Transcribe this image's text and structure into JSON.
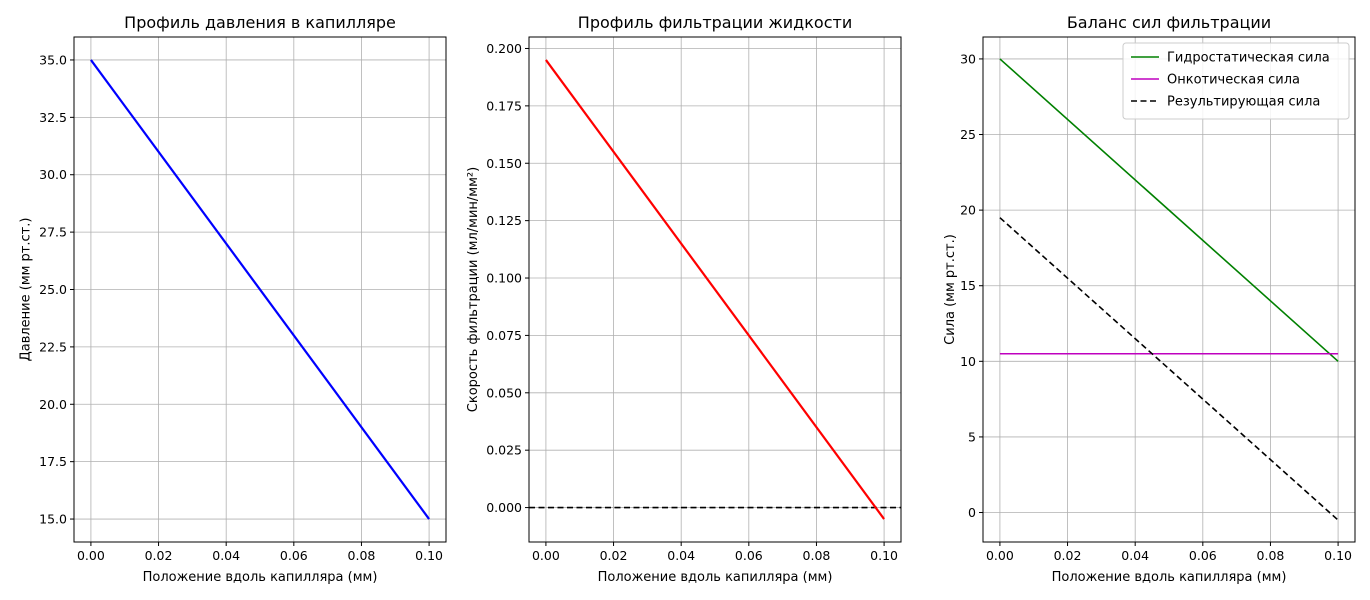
{
  "chart_data": [
    {
      "type": "line",
      "title": "Профиль давления в капилляре",
      "xlabel": "Положение вдоль капилляра (мм)",
      "ylabel": "Давление (мм рт.ст.)",
      "xlim": [
        -0.005,
        0.105
      ],
      "ylim": [
        14.0,
        36.0
      ],
      "xticks": [
        0.0,
        0.02,
        0.04,
        0.06,
        0.08,
        0.1
      ],
      "xtick_labels": [
        "0.00",
        "0.02",
        "0.04",
        "0.06",
        "0.08",
        "0.10"
      ],
      "yticks": [
        15.0,
        17.5,
        20.0,
        22.5,
        25.0,
        27.5,
        30.0,
        32.5,
        35.0
      ],
      "ytick_labels": [
        "15.0",
        "17.5",
        "20.0",
        "22.5",
        "25.0",
        "27.5",
        "30.0",
        "32.5",
        "35.0"
      ],
      "grid": true,
      "series": [
        {
          "x": [
            0.0,
            0.1
          ],
          "y": [
            35.0,
            15.0
          ],
          "color": "#0000ff",
          "style": "solid",
          "width": 2.2
        }
      ]
    },
    {
      "type": "line",
      "title": "Профиль фильтрации жидкости",
      "xlabel": "Положение вдоль капилляра (мм)",
      "ylabel": "Скорость фильтрации (мл/мин/мм²)",
      "xlim": [
        -0.005,
        0.105
      ],
      "ylim": [
        -0.015,
        0.205
      ],
      "xticks": [
        0.0,
        0.02,
        0.04,
        0.06,
        0.08,
        0.1
      ],
      "xtick_labels": [
        "0.00",
        "0.02",
        "0.04",
        "0.06",
        "0.08",
        "0.10"
      ],
      "yticks": [
        0.0,
        0.025,
        0.05,
        0.075,
        0.1,
        0.125,
        0.15,
        0.175,
        0.2
      ],
      "ytick_labels": [
        "0.000",
        "0.025",
        "0.050",
        "0.075",
        "0.100",
        "0.125",
        "0.150",
        "0.175",
        "0.200"
      ],
      "grid": true,
      "series": [
        {
          "x": [
            0.0,
            0.1
          ],
          "y": [
            0.195,
            -0.005
          ],
          "color": "#ff0000",
          "style": "solid",
          "width": 2.2
        }
      ],
      "hlines": [
        {
          "y": 0.0,
          "color": "#000000",
          "style": "dashed",
          "width": 1.6
        }
      ]
    },
    {
      "type": "line",
      "title": "Баланс сил фильтрации",
      "xlabel": "Положение вдоль капилляра (мм)",
      "ylabel": "Сила (мм рт.ст.)",
      "xlim": [
        -0.005,
        0.105
      ],
      "ylim": [
        -1.95,
        31.45
      ],
      "xticks": [
        0.0,
        0.02,
        0.04,
        0.06,
        0.08,
        0.1
      ],
      "xtick_labels": [
        "0.00",
        "0.02",
        "0.04",
        "0.06",
        "0.08",
        "0.10"
      ],
      "yticks": [
        0,
        5,
        10,
        15,
        20,
        25,
        30
      ],
      "ytick_labels": [
        "0",
        "5",
        "10",
        "15",
        "20",
        "25",
        "30"
      ],
      "grid": true,
      "legend": "top-right",
      "series": [
        {
          "name": "Гидростатическая сила",
          "x": [
            0.0,
            0.1
          ],
          "y": [
            30.0,
            10.0
          ],
          "color": "#008000",
          "style": "solid",
          "width": 1.6
        },
        {
          "name": "Онкотическая сила",
          "x": [
            0.0,
            0.1
          ],
          "y": [
            10.5,
            10.5
          ],
          "color": "#bf00bf",
          "style": "solid",
          "width": 1.6
        },
        {
          "name": "Результирующая сила",
          "x": [
            0.0,
            0.1
          ],
          "y": [
            19.5,
            -0.5
          ],
          "color": "#000000",
          "style": "dashed",
          "width": 1.6
        }
      ]
    }
  ]
}
